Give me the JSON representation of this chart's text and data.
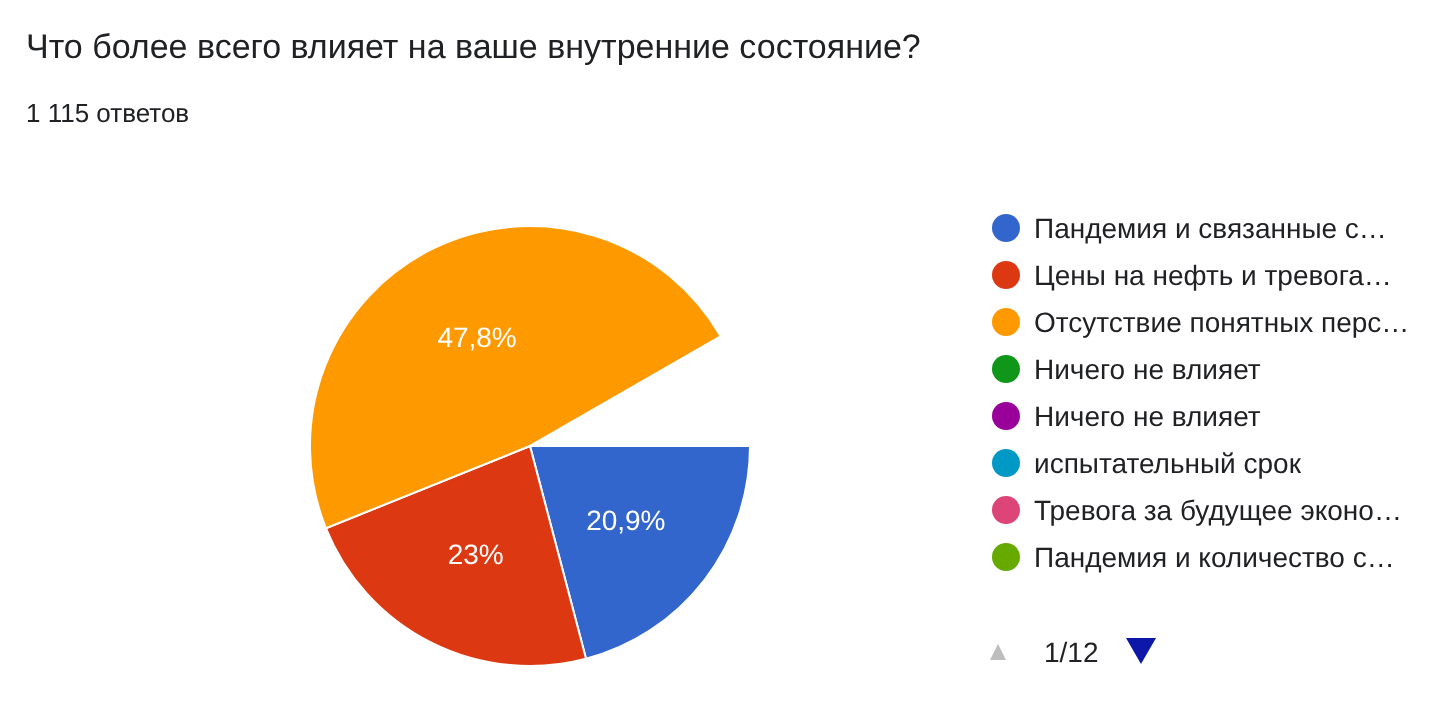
{
  "chart_data": {
    "type": "pie",
    "title": "Что более всего влияет на ваше внутренние состояние?",
    "subtitle": "1 115 ответов",
    "categories": [
      "Пандемия и связанные с…",
      "Цены на нефть и тревога…",
      "Отсутствие понятных перс…",
      "Ничего не влияет",
      "Ничего не влияет",
      "испытательный срок",
      "Тревога за будущее эконо…",
      "Пандемия и количество с…",
      null
    ],
    "values": [
      20.9,
      23,
      47.8,
      null,
      null,
      null,
      null,
      null,
      8.3
    ],
    "colors": [
      "#3366cc",
      "#dc3912",
      "#ff9900",
      "#109618",
      "#990099",
      "#0099c6",
      "#dd4477",
      "#66aa00",
      "#ffffff"
    ],
    "value_labels": [
      "20,9%",
      "23%",
      "47,8%",
      null,
      null,
      null,
      null,
      null,
      null
    ],
    "legend": "right",
    "annotations": [
      "1/12"
    ]
  }
}
